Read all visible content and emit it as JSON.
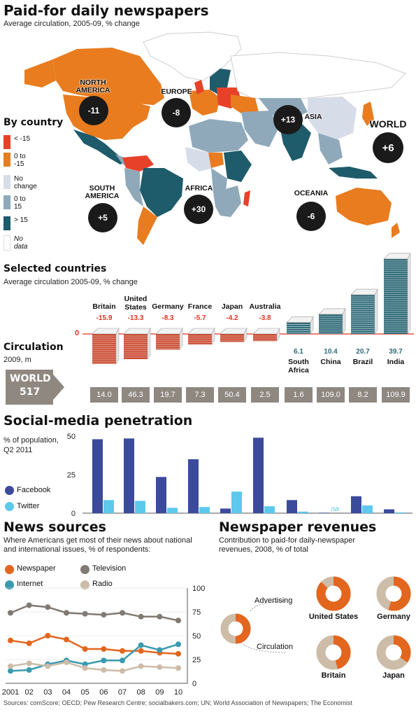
{
  "header": {
    "title": "Paid-for daily newspapers",
    "subtitle": "Average circulation, 2005-09, % change"
  },
  "map": {
    "legend_title": "By country",
    "legend": [
      {
        "label": "< -15",
        "color": "#e8412a"
      },
      {
        "label": "0 to\n-15",
        "color": "#e87c1e"
      },
      {
        "label": "No\nchange",
        "color": "#d7dde8"
      },
      {
        "label": "0 to\n15",
        "color": "#8fa9ba"
      },
      {
        "label": "> 15",
        "color": "#1e5b6b"
      },
      {
        "label": "No\ndata",
        "color": "#ffffff"
      }
    ],
    "regions": [
      {
        "name": "NORTH\nAMERICA",
        "value": "-11"
      },
      {
        "name": "EUROPE",
        "value": "-8"
      },
      {
        "name": "ASIA",
        "value": "+13"
      },
      {
        "name": "SOUTH\nAMERICA",
        "value": "+5"
      },
      {
        "name": "AFRICA",
        "value": "+30"
      },
      {
        "name": "OCEANIA",
        "value": "-6"
      },
      {
        "name": "WORLD",
        "value": "+6"
      }
    ]
  },
  "selected": {
    "title": "Selected countries",
    "subtitle": "Average circulation 2005-09, % change",
    "circ_label": "Circulation",
    "circ_unit": "2009, m",
    "world_label": "WORLD",
    "world_value": "517",
    "zero_label": "0"
  },
  "social": {
    "title": "Social-media penetration",
    "subtitle": "% of population,\nQ2 2011",
    "legend_facebook": "Facebook",
    "legend_twitter": "Twitter",
    "na_label": "na",
    "colors": {
      "facebook": "#3b4a9a",
      "twitter": "#5cc9ec"
    }
  },
  "news": {
    "title": "News sources",
    "subtitle": "Where Americans get most of their news about national\nand international issues, % of respondents:",
    "legend": {
      "newspaper": "Newspaper",
      "television": "Television",
      "internet": "Internet",
      "radio": "Radio"
    },
    "colors": {
      "newspaper": "#e3661f",
      "television": "#807a72",
      "internet": "#3a9ab0",
      "radio": "#cdbca8"
    }
  },
  "revenue": {
    "title": "Newspaper revenues",
    "subtitle": "Contribution to paid-for daily-newspaper\nrevenues, 2008, % of total",
    "advertising_label": "Advertising",
    "circulation_label": "Circulation",
    "colors": {
      "advertising": "#e3661f",
      "circulation": "#cdbca8"
    }
  },
  "source": "Sources: comScore; OECD; Pew Research Centre; socialbakers.com; UN; World Association of Newspapers; The Economist",
  "chart_data": [
    {
      "type": "bar",
      "title": "Selected countries",
      "subtitle": "Average circulation 2005-09, % change",
      "categories": [
        "Britain",
        "United States",
        "Germany",
        "France",
        "Japan",
        "Australia",
        "South Africa",
        "China",
        "Brazil",
        "India"
      ],
      "values": [
        -15.9,
        -13.3,
        -8.3,
        -5.7,
        -4.2,
        -3.8,
        6.1,
        10.4,
        20.7,
        39.7
      ],
      "value_labels": [
        "-15.9",
        "-13.3",
        "-8.3",
        "-5.7",
        "-4.2",
        "-3.8",
        "6.1",
        "10.4",
        "20.7",
        "39.7"
      ],
      "circulation_2009_m": [
        "14.0",
        "46.3",
        "19.7",
        "7.3",
        "50.4",
        "2.5",
        "1.6",
        "109.0",
        "8.2",
        "109.9"
      ],
      "colors": {
        "negative": "#c8452a",
        "positive": "#2f6b78"
      }
    },
    {
      "type": "bar",
      "title": "Social-media penetration",
      "ylabel": "% of population, Q2 2011",
      "categories": [
        "Britain",
        "United States",
        "Germany",
        "France",
        "Japan",
        "Australia",
        "South Africa",
        "China",
        "Brazil",
        "India"
      ],
      "yticks": [
        "0",
        "25",
        "50"
      ],
      "ylim": [
        0,
        50
      ],
      "series": [
        {
          "name": "Facebook",
          "values": [
            48,
            48.5,
            23.5,
            35,
            3,
            49,
            8.5,
            0.3,
            11,
            2.5
          ]
        },
        {
          "name": "Twitter",
          "values": [
            8.5,
            8,
            3.5,
            4,
            14,
            4.5,
            1,
            null,
            5,
            0.5
          ]
        }
      ]
    },
    {
      "type": "line",
      "title": "News sources",
      "x": [
        "2001",
        "02",
        "03",
        "04",
        "05",
        "06",
        "07",
        "08",
        "09",
        "10"
      ],
      "yticks": [
        "0",
        "25",
        "50",
        "75",
        "100"
      ],
      "ylim": [
        0,
        100
      ],
      "series": [
        {
          "name": "Newspaper",
          "values": [
            45,
            42,
            50,
            46,
            36,
            36,
            34,
            34,
            32,
            31
          ]
        },
        {
          "name": "Television",
          "values": [
            74,
            82,
            80,
            74,
            73,
            72,
            74,
            70,
            70,
            66
          ]
        },
        {
          "name": "Internet",
          "values": [
            13,
            14,
            20,
            24,
            20,
            24,
            24,
            40,
            35,
            41
          ]
        },
        {
          "name": "Radio",
          "values": [
            18,
            21,
            18,
            22,
            16,
            14,
            13,
            18,
            17,
            16
          ]
        }
      ]
    },
    {
      "type": "pie",
      "title": "Newspaper revenues",
      "subtitle": "Contribution to paid-for daily-newspaper revenues, 2008, % of total",
      "charts": [
        {
          "name": "United States",
          "advertising": 87,
          "circulation": 13
        },
        {
          "name": "Germany",
          "advertising": 55,
          "circulation": 45
        },
        {
          "name": "Britain",
          "advertising": 46,
          "circulation": 54
        },
        {
          "name": "Japan",
          "advertising": 35,
          "circulation": 65
        }
      ]
    }
  ]
}
